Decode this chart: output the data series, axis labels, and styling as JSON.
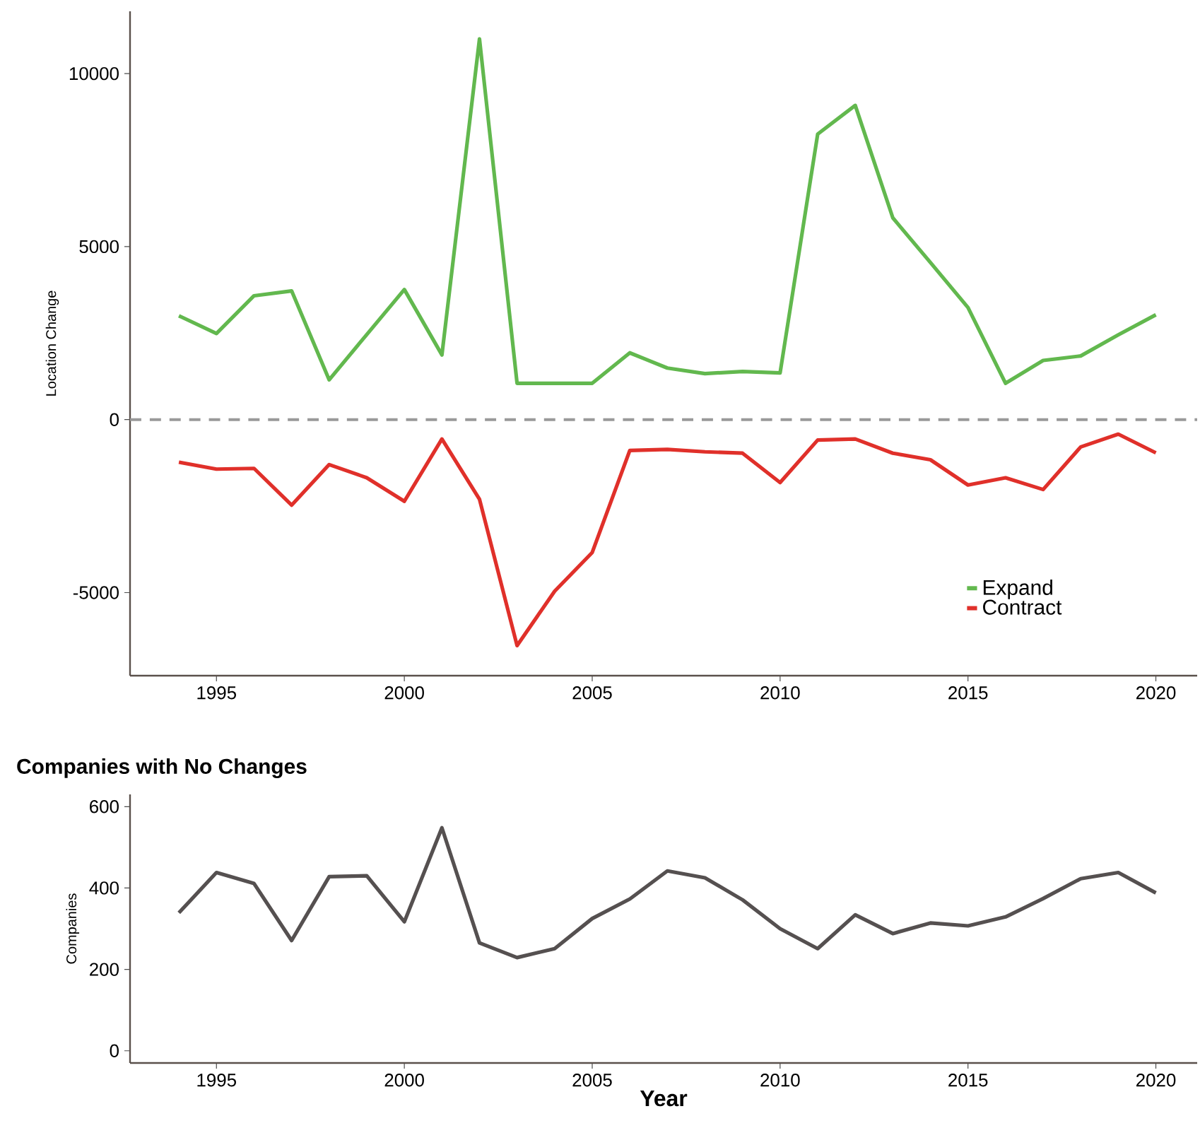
{
  "chart_data": [
    {
      "type": "line",
      "ylabel": "Location Change",
      "x": [
        1994,
        1995,
        1996,
        1997,
        1998,
        1999,
        2000,
        2001,
        2002,
        2003,
        2004,
        2005,
        2006,
        2007,
        2008,
        2009,
        2010,
        2011,
        2012,
        2013,
        2014,
        2015,
        2016,
        2017,
        2018,
        2019,
        2020
      ],
      "series": [
        {
          "name": "Expand",
          "color": "#62b84e",
          "values": [
            3000,
            2490,
            3580,
            3720,
            1150,
            2460,
            3760,
            1870,
            11000,
            1050,
            1050,
            1050,
            1930,
            1490,
            1330,
            1390,
            1350,
            8250,
            9080,
            5830,
            4540,
            3240,
            1050,
            1710,
            1840,
            2450,
            3030
          ]
        },
        {
          "name": "Contract",
          "color": "#e0302a",
          "values": [
            -1230,
            -1430,
            -1410,
            -2470,
            -1300,
            -1680,
            -2360,
            -560,
            -2300,
            -6530,
            -4960,
            -3840,
            -890,
            -860,
            -930,
            -970,
            -1820,
            -590,
            -560,
            -970,
            -1160,
            -1890,
            -1680,
            -2020,
            -790,
            -420,
            -960
          ]
        }
      ],
      "xlim": [
        1992.7,
        2021.1
      ],
      "ylim": [
        -7400,
        11800
      ],
      "xticks": [
        1995,
        2000,
        2005,
        2010,
        2015,
        2020
      ],
      "yticks": [
        -5000,
        0,
        5000,
        10000
      ],
      "ref_lines": [
        {
          "axis": "y",
          "value": 0,
          "color": "#999999",
          "line_style": "dashed"
        }
      ],
      "legend": "bottom right",
      "grid": false,
      "marker": "none",
      "line_style": "solid"
    },
    {
      "type": "line",
      "title": "Companies with No Changes",
      "xlabel": "Year",
      "ylabel": "Companies",
      "x": [
        1994,
        1995,
        1996,
        1997,
        1998,
        1999,
        2000,
        2001,
        2002,
        2003,
        2004,
        2005,
        2006,
        2007,
        2008,
        2009,
        2010,
        2011,
        2012,
        2013,
        2014,
        2015,
        2016,
        2017,
        2018,
        2019,
        2020
      ],
      "series": [
        {
          "color": "#555050",
          "values": [
            339,
            438,
            411,
            271,
            428,
            430,
            317,
            548,
            265,
            229,
            251,
            325,
            373,
            442,
            425,
            371,
            300,
            251,
            334,
            288,
            314,
            307,
            329,
            374,
            423,
            438,
            388
          ]
        }
      ],
      "xlim": [
        1992.7,
        2021.1
      ],
      "ylim": [
        -30,
        630
      ],
      "xticks": [
        1995,
        2000,
        2005,
        2010,
        2015,
        2020
      ],
      "yticks": [
        0,
        200,
        400,
        600
      ],
      "legend": false,
      "grid": false,
      "marker": "none",
      "line_style": "solid"
    }
  ]
}
